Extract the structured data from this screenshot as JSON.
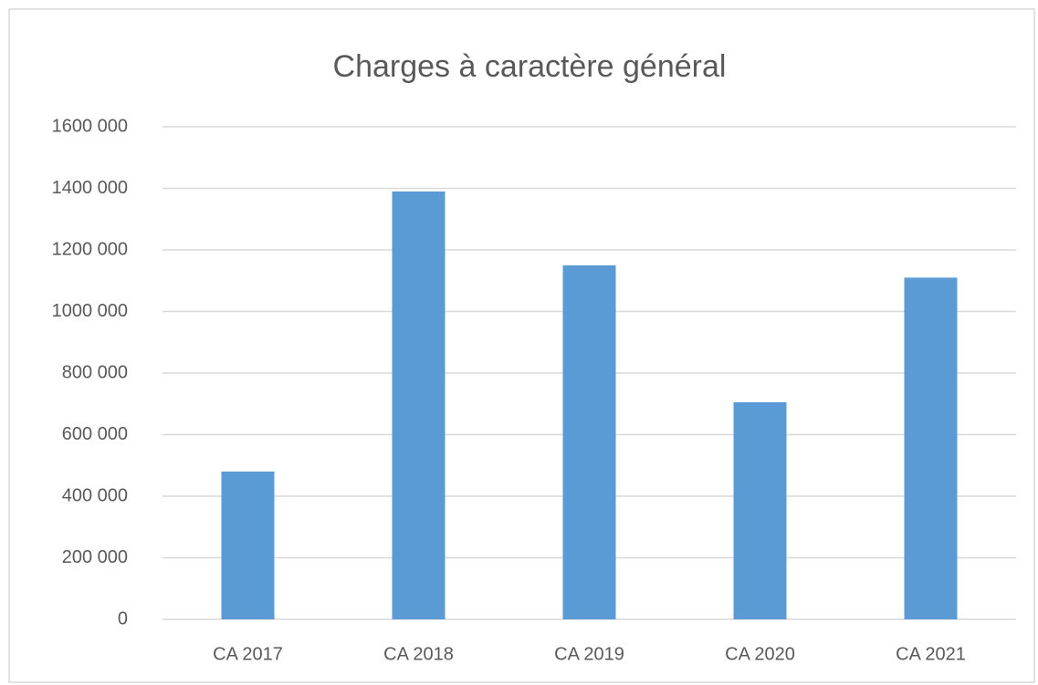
{
  "chart_data": {
    "type": "bar",
    "title": "Charges à caractère général",
    "categories": [
      "CA 2017",
      "CA 2018",
      "CA 2019",
      "CA 2020",
      "CA 2021"
    ],
    "values": [
      480000,
      1390000,
      1150000,
      705000,
      1110000
    ],
    "color": "#5b9bd5",
    "ylim": [
      0,
      1600000
    ],
    "yticks": [
      0,
      {
        "value": 200000,
        "label": "200 000"
      },
      {
        "value": 400000,
        "label": "400 000"
      },
      {
        "value": 600000,
        "label": "600 000"
      },
      {
        "value": 800000,
        "label": "800 000"
      },
      {
        "value": 1000000,
        "label": "1000 000"
      },
      {
        "value": 1200000,
        "label": "1200 000"
      },
      {
        "value": 1400000,
        "label": "1400 000"
      },
      {
        "value": 1600000,
        "label": "1600 000"
      }
    ],
    "grid": true
  }
}
